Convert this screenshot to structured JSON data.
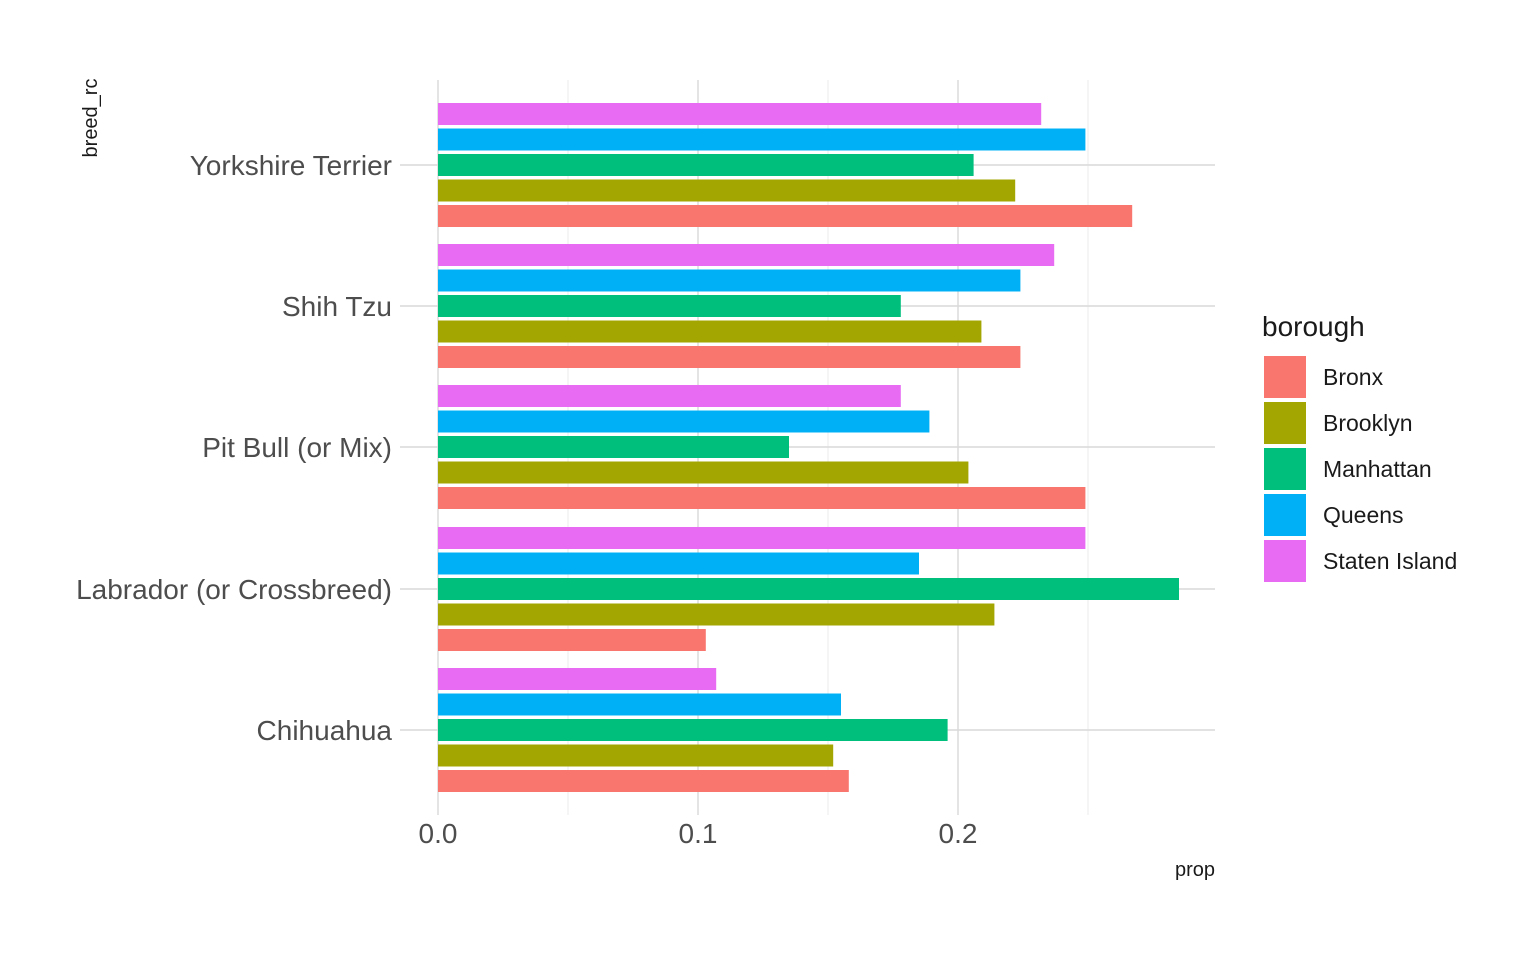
{
  "chart_data": {
    "type": "bar",
    "orientation": "horizontal",
    "position": "dodge",
    "xlabel": "prop",
    "ylabel": "breed_rc",
    "xlim": [
      0,
      0.3
    ],
    "x_ticks": [
      0.0,
      0.1,
      0.2
    ],
    "x_tick_labels": [
      "0.0",
      "0.1",
      "0.2"
    ],
    "grid": true,
    "legend_position": "right",
    "legend_title": "borough",
    "categories": [
      "Chihuahua",
      "Labrador (or Crossbreed)",
      "Pit Bull (or Mix)",
      "Shih Tzu",
      "Yorkshire Terrier"
    ],
    "series": [
      {
        "name": "Bronx",
        "color": "#F8766D",
        "values": [
          0.158,
          0.103,
          0.249,
          0.224,
          0.267
        ]
      },
      {
        "name": "Brooklyn",
        "color": "#A3A500",
        "values": [
          0.152,
          0.214,
          0.204,
          0.209,
          0.222
        ]
      },
      {
        "name": "Manhattan",
        "color": "#00BF7D",
        "values": [
          0.196,
          0.285,
          0.135,
          0.178,
          0.206
        ]
      },
      {
        "name": "Queens",
        "color": "#00B0F6",
        "values": [
          0.155,
          0.185,
          0.189,
          0.224,
          0.249
        ]
      },
      {
        "name": "Staten Island",
        "color": "#E76BF3",
        "values": [
          0.107,
          0.249,
          0.178,
          0.237,
          0.232
        ]
      }
    ]
  }
}
